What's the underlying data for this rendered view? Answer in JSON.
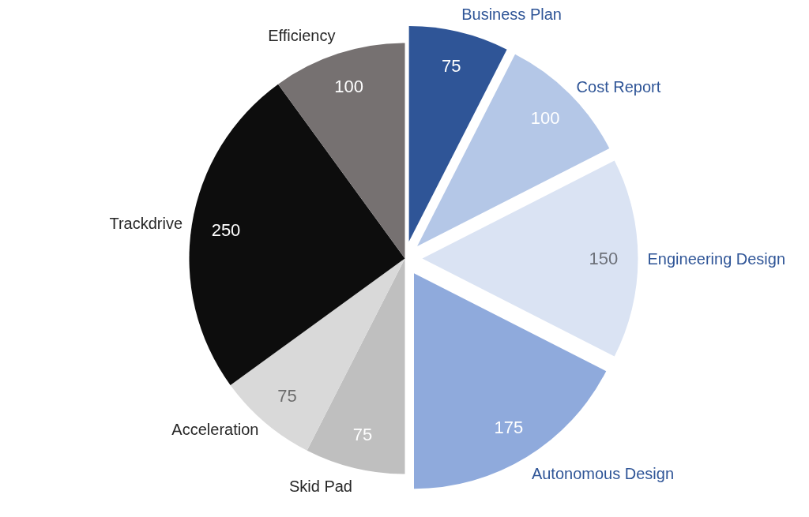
{
  "chart_data": {
    "type": "pie",
    "categories": [
      "Business Plan",
      "Cost Report",
      "Engineering Design",
      "Autonomous Design",
      "Skid Pad",
      "Acceleration",
      "Trackdrive",
      "Efficiency"
    ],
    "values": [
      75,
      100,
      150,
      175,
      75,
      75,
      250,
      100
    ],
    "colors": [
      "#2f5597",
      "#b4c7e7",
      "#dae3f3",
      "#8faadc",
      "#bfbfbf",
      "#d9d9d9",
      "#0d0d0d",
      "#767171"
    ],
    "data_labels": true
  }
}
